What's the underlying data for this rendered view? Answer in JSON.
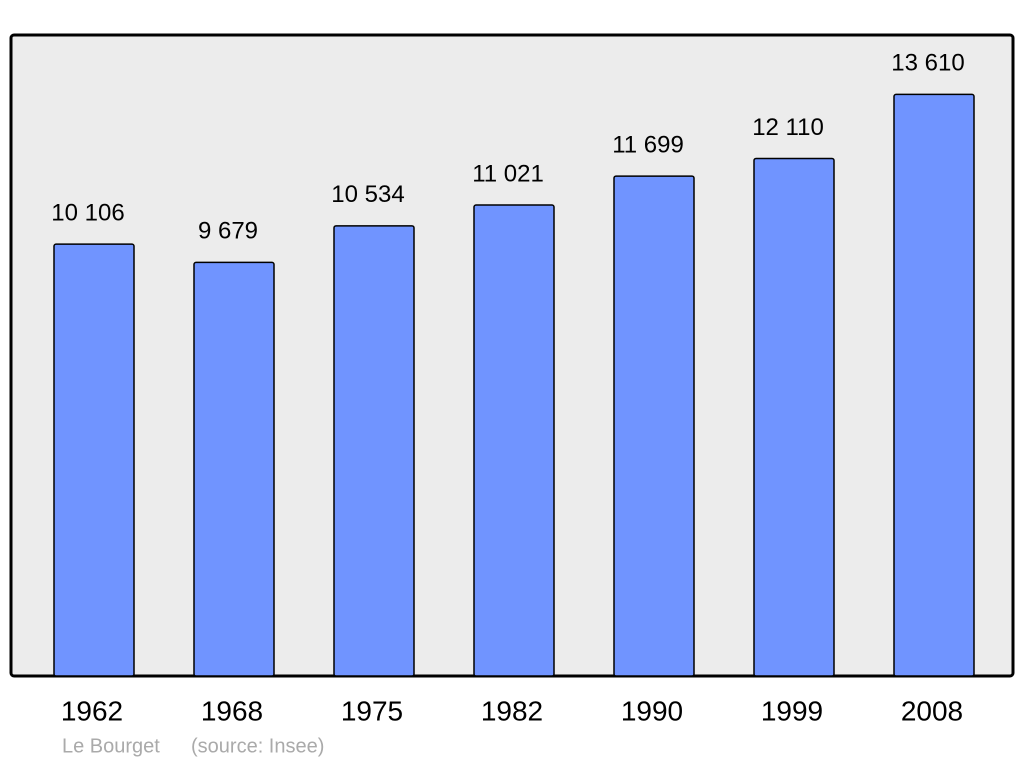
{
  "chart_data": {
    "type": "bar",
    "categories": [
      "1962",
      "1968",
      "1975",
      "1982",
      "1990",
      "1999",
      "2008"
    ],
    "values": [
      10106,
      9679,
      10534,
      11021,
      11699,
      12110,
      13610
    ],
    "value_labels": [
      "10 106",
      "9 679",
      "10 534",
      "11 021",
      "11 699",
      "12 110",
      "13 610"
    ],
    "color": "#7094ff",
    "ylim": [
      0,
      15000
    ],
    "place": "Le Bourget",
    "source": "(source: Insee)"
  }
}
